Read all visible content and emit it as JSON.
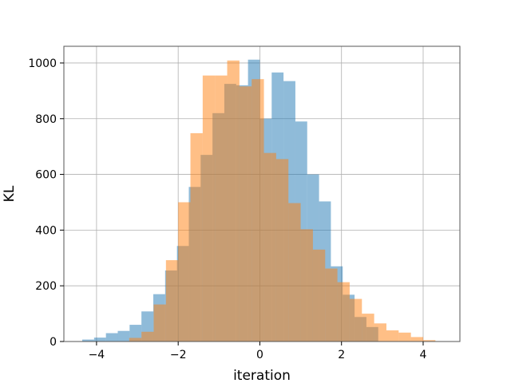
{
  "chart_data": {
    "type": "bar",
    "subtype": "overlaid-histogram",
    "title": "",
    "xlabel": "iteration",
    "ylabel": "KL",
    "xlim": [
      -4.8,
      4.9
    ],
    "ylim": [
      0,
      1060
    ],
    "xticks": [
      -4,
      -2,
      0,
      2,
      4
    ],
    "xtick_labels": [
      "−4",
      "−2",
      "0",
      "2",
      "4"
    ],
    "yticks": [
      0,
      200,
      400,
      600,
      800,
      1000
    ],
    "ytick_labels": [
      "0",
      "200",
      "400",
      "600",
      "800",
      "1000"
    ],
    "grid": true,
    "series": [
      {
        "color": "#1f77b4",
        "opacity": 0.5,
        "bin_edges": [
          -4.35,
          -4.06,
          -3.77,
          -3.48,
          -3.19,
          -2.9,
          -2.61,
          -2.32,
          -2.03,
          -1.74,
          -1.45,
          -1.16,
          -0.87,
          -0.58,
          -0.29,
          0.0,
          0.29,
          0.58,
          0.87,
          1.16,
          1.45,
          1.74,
          2.03,
          2.32,
          2.61,
          2.9
        ],
        "values": [
          7,
          14,
          30,
          38,
          60,
          108,
          170,
          255,
          343,
          555,
          670,
          820,
          925,
          920,
          1012,
          800,
          966,
          935,
          790,
          600,
          503,
          270,
          168,
          88,
          52
        ]
      },
      {
        "color": "#ff7f0e",
        "opacity": 0.5,
        "bin_edges": [
          -3.2,
          -2.9,
          -2.6,
          -2.3,
          -2.0,
          -1.7,
          -1.4,
          -1.1,
          -0.8,
          -0.5,
          -0.2,
          0.1,
          0.4,
          0.7,
          1.0,
          1.3,
          1.6,
          1.9,
          2.2,
          2.5,
          2.8,
          3.1,
          3.4,
          3.7,
          4.0,
          4.3
        ],
        "values": [
          13,
          35,
          133,
          292,
          500,
          748,
          955,
          955,
          1009,
          916,
          942,
          677,
          655,
          497,
          403,
          330,
          262,
          213,
          153,
          100,
          65,
          40,
          32,
          16,
          5
        ]
      }
    ]
  }
}
